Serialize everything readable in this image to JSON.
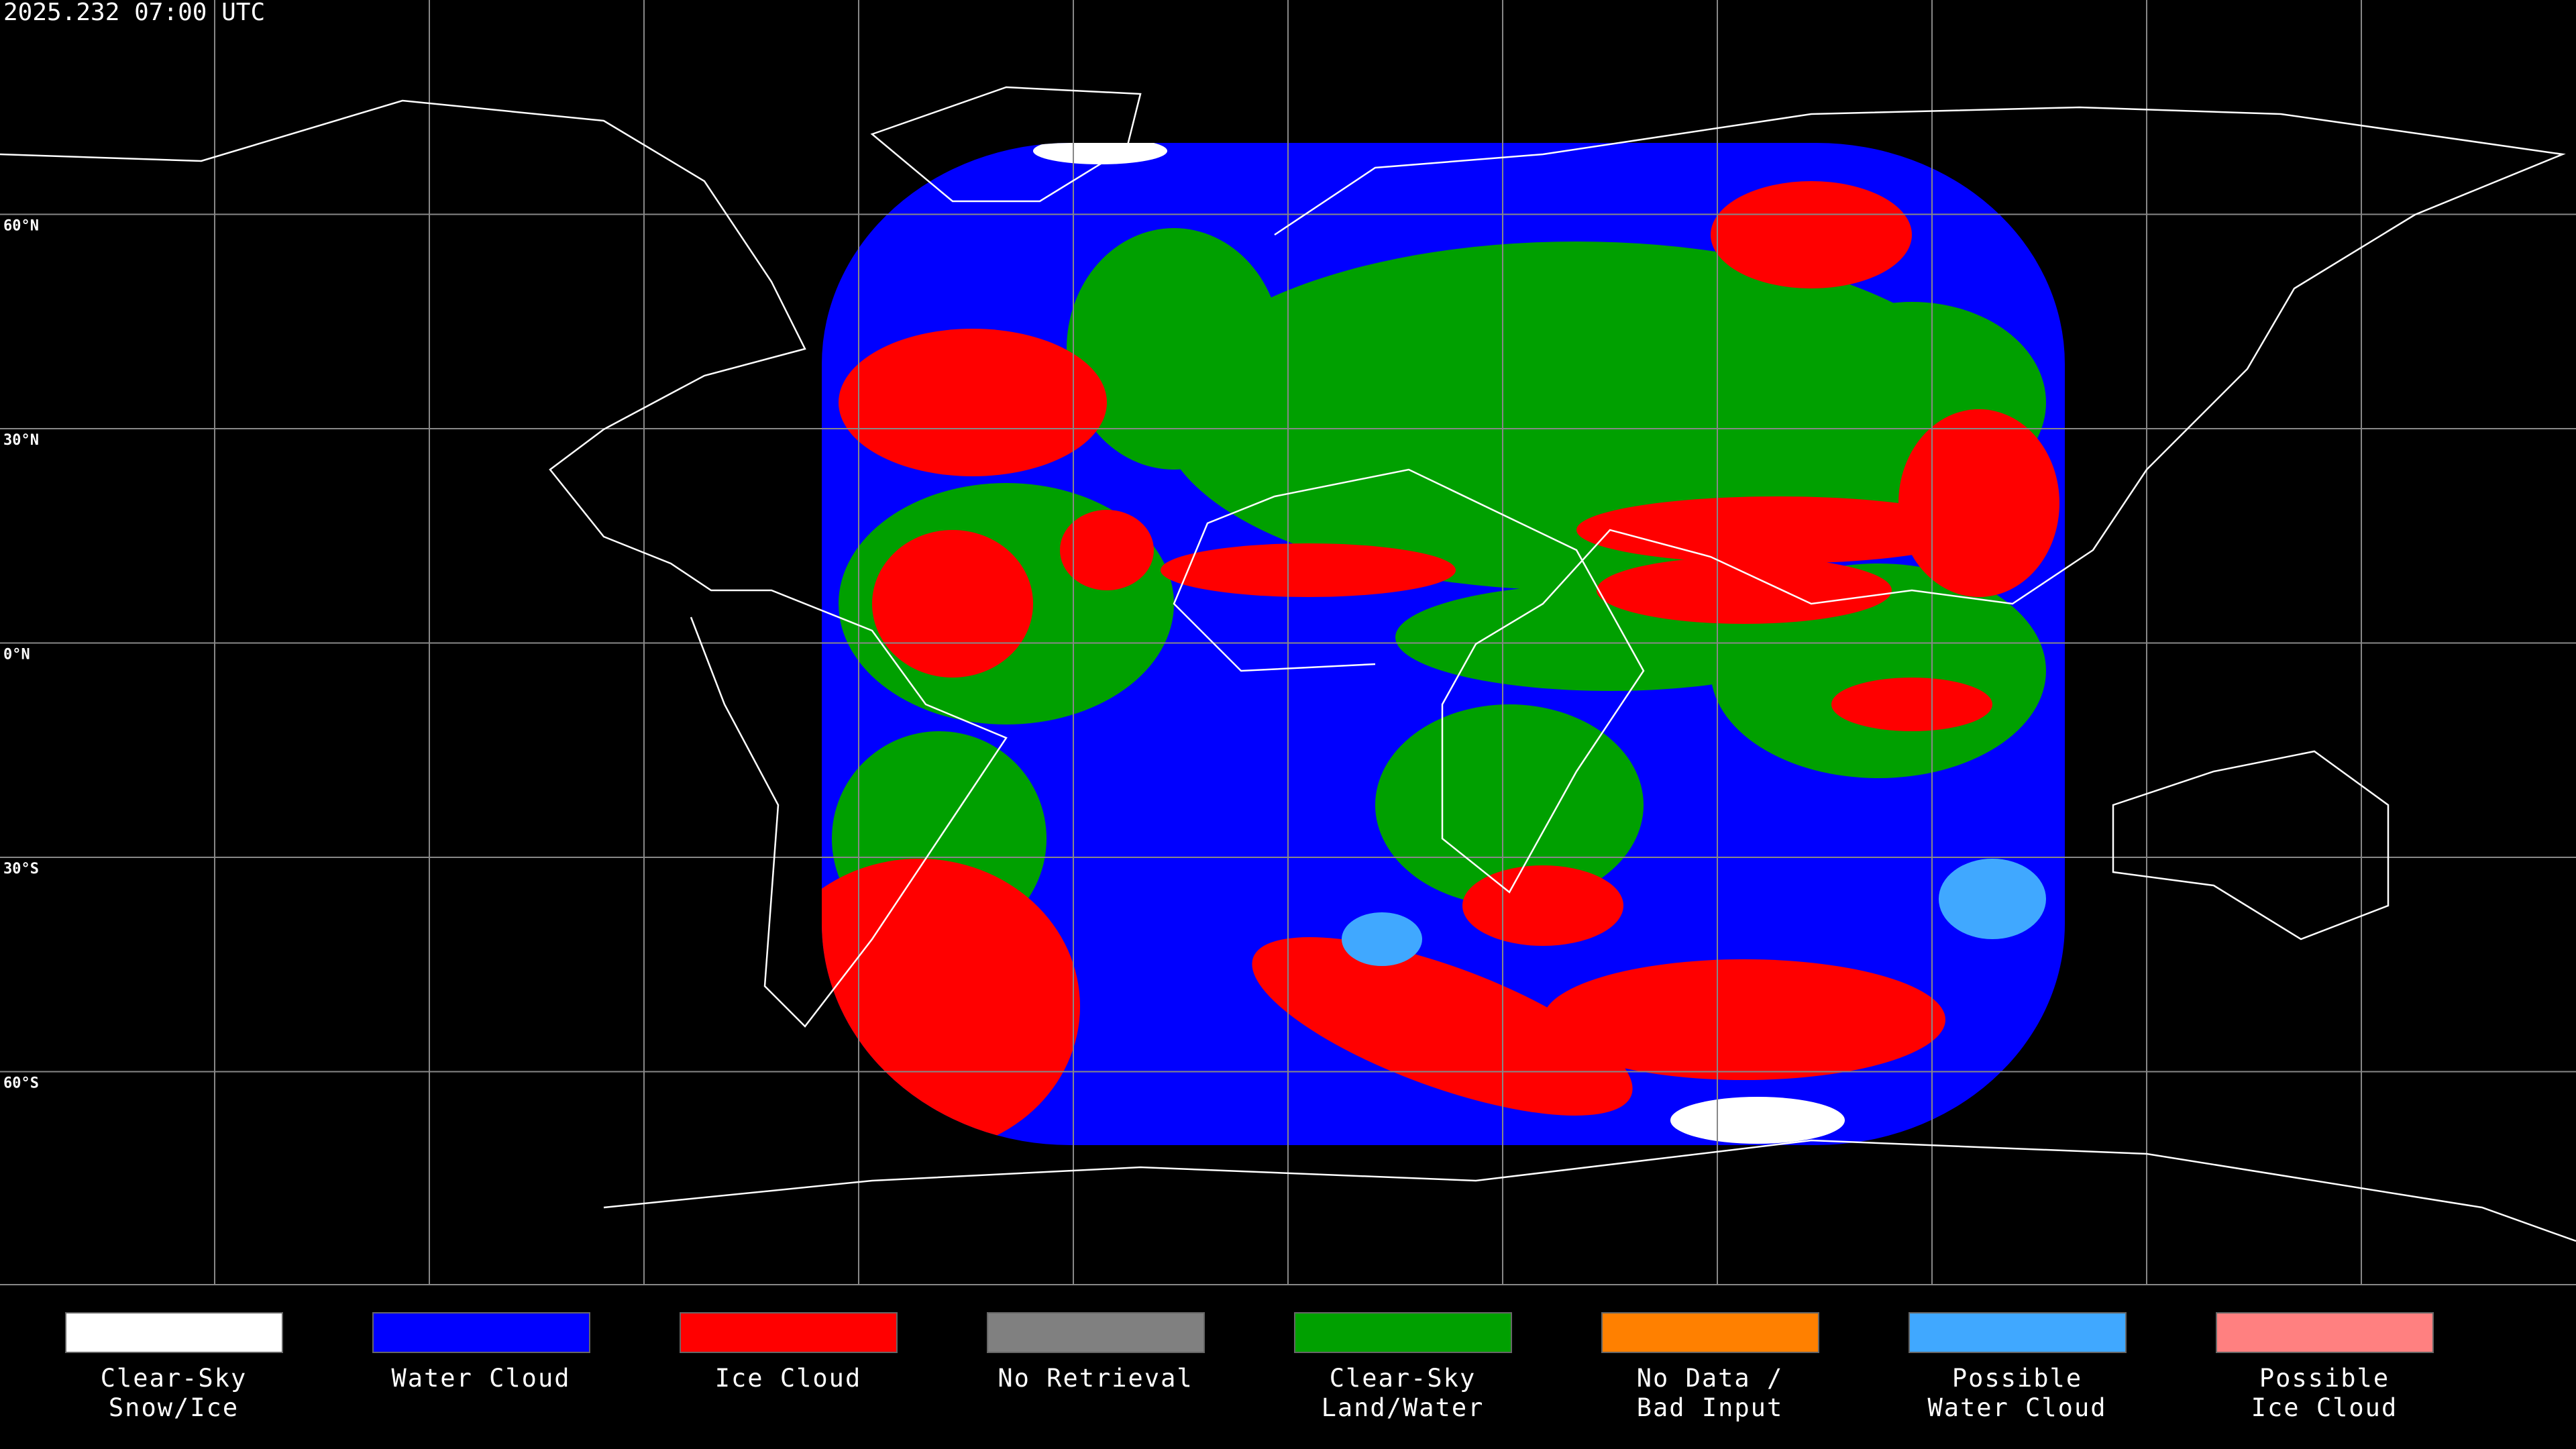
{
  "header": {
    "timestamp": "2025.232 07:00 UTC"
  },
  "map": {
    "lat_labels": [
      "60°N",
      "30°N",
      "0°N",
      "30°S",
      "60°S"
    ]
  },
  "legend": {
    "items": [
      {
        "lines": [
          "Clear-Sky",
          "Snow/Ice"
        ],
        "color": "#ffffff"
      },
      {
        "lines": [
          "Water Cloud"
        ],
        "color": "#0000ff"
      },
      {
        "lines": [
          "Ice Cloud"
        ],
        "color": "#ff0000"
      },
      {
        "lines": [
          "No Retrieval"
        ],
        "color": "#808080"
      },
      {
        "lines": [
          "Clear-Sky",
          "Land/Water"
        ],
        "color": "#00a000"
      },
      {
        "lines": [
          "No Data /",
          "Bad Input"
        ],
        "color": "#ff8000"
      },
      {
        "lines": [
          "Possible",
          "Water Cloud"
        ],
        "color": "#40a8ff"
      },
      {
        "lines": [
          "Possible",
          "Ice Cloud"
        ],
        "color": "#ff8080"
      }
    ]
  }
}
